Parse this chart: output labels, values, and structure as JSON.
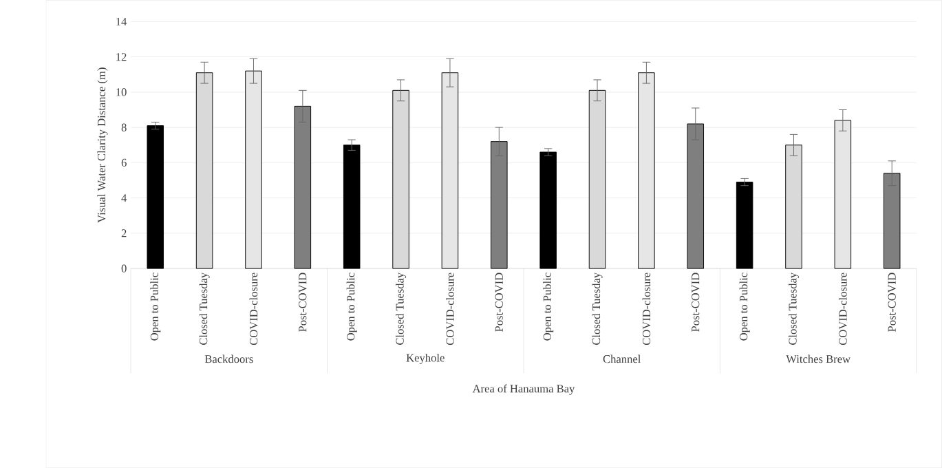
{
  "chart_data": {
    "type": "bar",
    "ylabel": "Visual Water Clarity Distance (m)",
    "xlabel": "Area of Hanauma Bay",
    "categories": [
      "Open to Public",
      "Closed Tuesday",
      "COVID-closure",
      "Post-COVID",
      "Open to Public",
      "Closed Tuesday",
      "COVID-closure",
      "Post-COVID",
      "Open to Public",
      "Closed Tuesday",
      "COVID-closure",
      "Post-COVID",
      "Open to Public",
      "Closed Tuesday",
      "COVID-closure",
      "Post-COVID"
    ],
    "values": [
      8.1,
      11.1,
      11.2,
      9.2,
      7.0,
      10.1,
      11.1,
      7.2,
      6.6,
      10.1,
      11.1,
      8.2,
      4.9,
      7.0,
      8.4,
      5.4
    ],
    "errors": [
      0.2,
      0.6,
      0.7,
      0.9,
      0.3,
      0.6,
      0.8,
      0.8,
      0.2,
      0.6,
      0.6,
      0.9,
      0.2,
      0.6,
      0.6,
      0.7
    ],
    "colors": [
      "#000000",
      "#d9d9d9",
      "#e7e6e7",
      "#7f7f7f",
      "#000000",
      "#d9d9d9",
      "#e7e6e7",
      "#7f7f7f",
      "#000000",
      "#d9d9d9",
      "#e7e6e7",
      "#7f7f7f",
      "#000000",
      "#d9d9d9",
      "#e7e6e7",
      "#7f7f7f"
    ],
    "annotations": [
      "Backdoors",
      "Keyhole",
      "Channel",
      "Witches Brew"
    ],
    "ylim": [
      0,
      14
    ],
    "yticks": [
      0,
      2,
      4,
      6,
      8,
      10,
      12,
      14
    ],
    "grid": "y"
  }
}
